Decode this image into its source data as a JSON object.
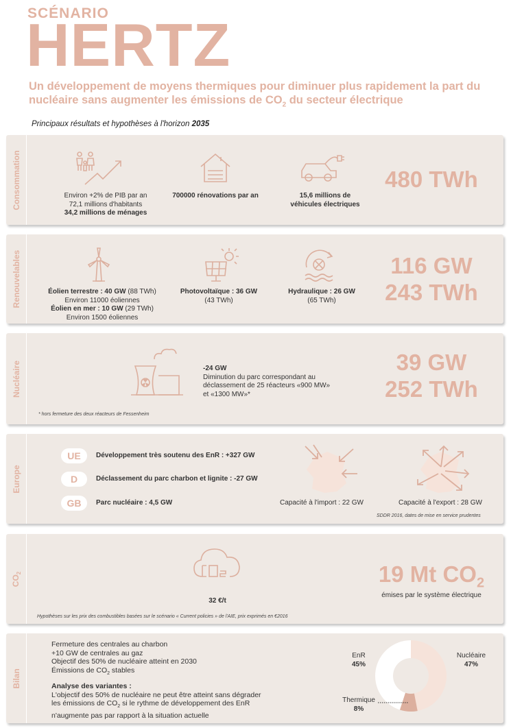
{
  "header": {
    "kicker": "SCÉNARIO",
    "title": "HERTZ",
    "subtitle_part1": "Un développement de moyens thermiques pour diminuer plus rapidement la part du nucléaire sans augmenter les émissions de CO",
    "subtitle_sub": "2",
    "subtitle_part2": " du secteur électrique",
    "horizon_text": "Principaux résultats et hypothèses à l'horizon ",
    "horizon_year": "2035"
  },
  "consommation": {
    "label": "Consommation",
    "pib_line1": "Environ +2% de PIB par an",
    "pib_line2": "72,1 millions d'habitants",
    "pib_line3": "34,2 millions de ménages",
    "renov": "700000 rénovations par an",
    "ve_line1": "15,6 millions de",
    "ve_line2": "véhicules électriques",
    "result": "480 TWh"
  },
  "renouvelables": {
    "label": "Renouvelables",
    "eolien_terre_bold": "Éolien terrestre : 40 GW",
    "eolien_terre_rest": " (88 TWh)",
    "eolien_terre_count": "Environ 11000 éoliennes",
    "eolien_mer_bold": "Éolien en mer : 10 GW",
    "eolien_mer_rest": " (29 TWh)",
    "eolien_mer_count": "Environ 1500 éoliennes",
    "pv_bold": "Photovoltaïque : 36 GW",
    "pv_rest": "(43 TWh)",
    "hydro_bold": "Hydraulique : 26 GW",
    "hydro_rest": "(65 TWh)",
    "result_gw": "116 GW",
    "result_twh": "243 TWh"
  },
  "nucleaire": {
    "label": "Nucléaire",
    "delta": "-24 GW",
    "desc_line1": "Diminution du parc correspondant au",
    "desc_line2": "déclassement de 25 réacteurs «900 MW»",
    "desc_line3": "et «1300 MW»*",
    "footnote": "* hors fermeture des deux réacteurs de Fessenheim",
    "result_gw": "39 GW",
    "result_twh": "252 TWh"
  },
  "europe": {
    "label": "Europe",
    "rows": [
      {
        "code": "UE",
        "text": "Développement très soutenu des EnR : +327 GW"
      },
      {
        "code": "D",
        "text": "Déclassement du parc charbon et lignite : -27 GW"
      },
      {
        "code": "GB",
        "text": "Parc nucléaire : 4,5 GW"
      }
    ],
    "import_label": "Capacité à l'import : 22 GW",
    "export_label": "Capacité à l'export : 28 GW",
    "source_note": "SDDR 2016, dates de mise en service prudentes"
  },
  "co2": {
    "label": "CO",
    "label_sub": "2",
    "icon_text": "CO",
    "icon_sub": "2",
    "price": "32 €/t",
    "result_main": "19 Mt CO",
    "result_sub": "2",
    "result_caption": "émises par le système électrique",
    "note": "Hypothèses sur les prix des combustibles basées sur le scénario « Current policies » de l'AIE, prix exprimés en €2016"
  },
  "bilan": {
    "label": "Bilan",
    "line1": "Fermeture des centrales au charbon",
    "line2": "+10 GW de centrales au gaz",
    "line3": "Objectif des 50% de nucléaire atteint en 2030",
    "line4_a": "Émissions de CO",
    "line4_sub": "2",
    "line4_b": " stables",
    "variants_title": "Analyse des variantes :",
    "var_line1": "L'objectif des 50% de nucléaire ne peut être atteint sans dégrader",
    "var_line2_a": "les émissions de CO",
    "var_line2_sub": "2",
    "var_line2_b": " si le rythme de développement des EnR",
    "var_line3": "n'augmente pas par rapport à la situation actuelle"
  },
  "chart_data": {
    "type": "pie",
    "categories": [
      "Nucléaire",
      "Thermique",
      "EnR"
    ],
    "values": [
      47,
      8,
      45
    ],
    "value_labels": [
      "47%",
      "8%",
      "45%"
    ],
    "colors": [
      "#f6e3da",
      "#dcaf9e",
      "#ffffff"
    ]
  }
}
